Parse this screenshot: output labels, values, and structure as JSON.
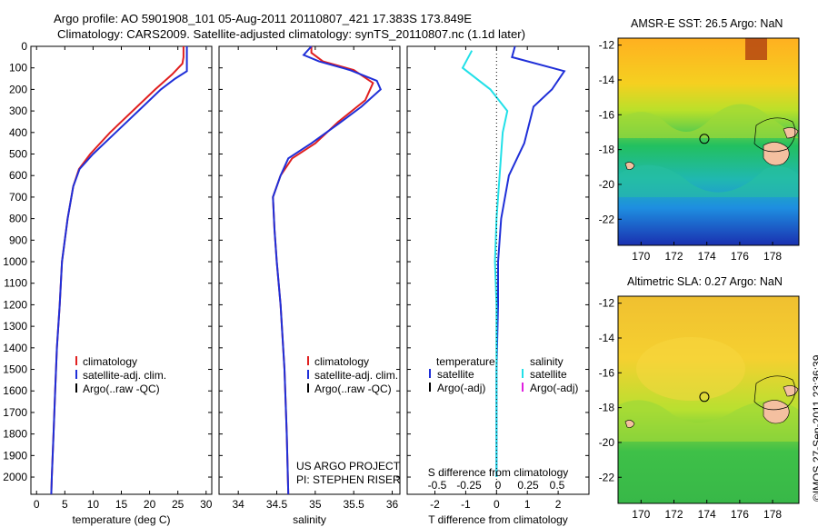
{
  "header": {
    "title_line1": "Argo profile: AO 5901908_101 05-Aug-2011 20110807_421 17.383S 173.849E",
    "title_line2": "Climatology: CARS2009. Satellite-adjusted climatology: synTS_20110807.nc (1.1d later)"
  },
  "credit": "©IMOS 27-Sep-2011 23:36:39",
  "colors": {
    "climatology": "#e02020",
    "satellite": "#1f2fd8",
    "argo": "#000000",
    "salinity_satellite": "#22e0e8",
    "salinity_argo": "#e020e0"
  },
  "chart_data": [
    {
      "type": "line",
      "xlabel": "temperature (deg C)",
      "ylabel": "",
      "xlim": [
        -1,
        31
      ],
      "ylim": [
        2080,
        0
      ],
      "xticks": [
        0,
        5,
        10,
        15,
        20,
        25,
        30
      ],
      "yticks": [
        0,
        100,
        200,
        300,
        400,
        500,
        600,
        700,
        800,
        900,
        1000,
        1100,
        1200,
        1300,
        1400,
        1500,
        1600,
        1700,
        1800,
        1900,
        2000
      ],
      "legend": [
        "climatology",
        "satellite-adj. clim.",
        "Argo(..raw -QC)"
      ],
      "series": [
        {
          "name": "climatology",
          "color": "#e02020",
          "points": [
            [
              26.0,
              0
            ],
            [
              26.0,
              50
            ],
            [
              25.8,
              80
            ],
            [
              24,
              130
            ],
            [
              21,
              200
            ],
            [
              17,
              300
            ],
            [
              13,
              400
            ],
            [
              9.5,
              500
            ],
            [
              7.5,
              570
            ],
            [
              6.5,
              650
            ],
            [
              5.5,
              800
            ],
            [
              5,
              900
            ],
            [
              4.5,
              1000
            ],
            [
              4.1,
              1200
            ],
            [
              3.6,
              1400
            ],
            [
              3.3,
              1600
            ],
            [
              3.0,
              1800
            ],
            [
              2.7,
              2000
            ],
            [
              2.6,
              2080
            ]
          ]
        },
        {
          "name": "satellite-adj. clim.",
          "color": "#1f2fd8",
          "points": [
            [
              26.6,
              0
            ],
            [
              26.6,
              60
            ],
            [
              26.6,
              115
            ],
            [
              24.5,
              150
            ],
            [
              22,
              200
            ],
            [
              18,
              300
            ],
            [
              14,
              400
            ],
            [
              10,
              500
            ],
            [
              7.6,
              570
            ],
            [
              6.5,
              650
            ],
            [
              5.5,
              800
            ],
            [
              5,
              900
            ],
            [
              4.5,
              1000
            ],
            [
              4.1,
              1200
            ],
            [
              3.6,
              1400
            ],
            [
              3.3,
              1600
            ],
            [
              3.0,
              1800
            ],
            [
              2.7,
              2000
            ],
            [
              2.6,
              2080
            ]
          ]
        }
      ]
    },
    {
      "type": "line",
      "xlabel": "salinity",
      "xlim": [
        33.75,
        36.1
      ],
      "ylim": [
        2080,
        0
      ],
      "xticks": [
        34,
        34.5,
        35,
        35.5,
        36
      ],
      "xticklabels": [
        "34",
        "34.5",
        "35",
        "35.5",
        "36"
      ],
      "legend": [
        "climatology",
        "satellite-adj. clim.",
        "Argo(..raw -QC)"
      ],
      "annotation": [
        "US ARGO PROJECT",
        "PI: STEPHEN RISER"
      ],
      "series": [
        {
          "name": "climatology",
          "color": "#e02020",
          "points": [
            [
              34.95,
              0
            ],
            [
              34.95,
              30
            ],
            [
              35.1,
              70
            ],
            [
              35.5,
              110
            ],
            [
              35.75,
              170
            ],
            [
              35.65,
              250
            ],
            [
              35.3,
              350
            ],
            [
              35.0,
              450
            ],
            [
              34.7,
              520
            ],
            [
              34.55,
              600
            ],
            [
              34.45,
              700
            ],
            [
              34.47,
              850
            ],
            [
              34.5,
              1000
            ],
            [
              34.55,
              1200
            ],
            [
              34.6,
              1500
            ],
            [
              34.63,
              1800
            ],
            [
              34.65,
              2080
            ]
          ]
        },
        {
          "name": "satellite-adj. clim.",
          "color": "#1f2fd8",
          "points": [
            [
              34.95,
              0
            ],
            [
              34.85,
              40
            ],
            [
              35.05,
              70
            ],
            [
              35.45,
              110
            ],
            [
              35.8,
              160
            ],
            [
              35.85,
              200
            ],
            [
              35.6,
              280
            ],
            [
              35.3,
              360
            ],
            [
              34.95,
              450
            ],
            [
              34.65,
              520
            ],
            [
              34.55,
              600
            ],
            [
              34.45,
              700
            ],
            [
              34.47,
              850
            ],
            [
              34.5,
              1000
            ],
            [
              34.55,
              1200
            ],
            [
              34.6,
              1500
            ],
            [
              34.63,
              1800
            ],
            [
              34.65,
              2080
            ]
          ]
        }
      ]
    },
    {
      "type": "line",
      "xlabel": "T difference from climatology",
      "xlabel2": "S difference from climatology",
      "xlim": [
        -2.9,
        3.0
      ],
      "ylim": [
        2080,
        0
      ],
      "xticks": [
        -2,
        -1,
        0,
        1,
        2
      ],
      "xticklabels": [
        "-2",
        "-1",
        "0",
        "1",
        "2"
      ],
      "sticklabels": [
        "-0.5",
        "-0.25",
        "0",
        "0.25",
        "0.5"
      ],
      "legend_temperature": [
        "temperature",
        "satellite",
        "Argo(-adj)"
      ],
      "legend_salinity": [
        "salinity",
        "satellite",
        "Argo(-adj)"
      ],
      "series": [
        {
          "name": "temperature satellite",
          "color": "#1f2fd8",
          "points": [
            [
              0.6,
              0
            ],
            [
              0.5,
              50
            ],
            [
              2.2,
              115
            ],
            [
              1.8,
              200
            ],
            [
              1.2,
              280
            ],
            [
              0.9,
              450
            ],
            [
              0.4,
              600
            ],
            [
              0.15,
              800
            ],
            [
              0.05,
              1000
            ],
            [
              0.05,
              1200
            ],
            [
              0.0,
              1500
            ],
            [
              0.0,
              2000
            ]
          ]
        },
        {
          "name": "salinity satellite",
          "color": "#22e0e8",
          "points": [
            [
              -0.8,
              20
            ],
            [
              -1.1,
              100
            ],
            [
              -0.2,
              200
            ],
            [
              0.35,
              300
            ],
            [
              0.2,
              400
            ],
            [
              0.1,
              600
            ],
            [
              0.0,
              800
            ],
            [
              -0.05,
              1000
            ],
            [
              0.0,
              1200
            ],
            [
              0.0,
              1500
            ],
            [
              0.0,
              2000
            ]
          ]
        }
      ]
    },
    {
      "type": "heatmap",
      "title": "AMSR-E SST: 26.5 Argo: NaN",
      "xlim": [
        168.6,
        179.6
      ],
      "ylim": [
        -23.5,
        -11.6
      ],
      "xticks": [
        170,
        172,
        174,
        176,
        178
      ],
      "yticks": [
        -12,
        -14,
        -16,
        -18,
        -20,
        -22
      ],
      "marker": [
        173.849,
        -17.383
      ]
    },
    {
      "type": "heatmap",
      "title": "Altimetric SLA: 0.27 Argo: NaN",
      "xlim": [
        168.6,
        179.6
      ],
      "ylim": [
        -23.5,
        -11.6
      ],
      "xticks": [
        170,
        172,
        174,
        176,
        178
      ],
      "yticks": [
        -12,
        -14,
        -16,
        -18,
        -20,
        -22
      ],
      "marker": [
        173.849,
        -17.383
      ]
    }
  ]
}
